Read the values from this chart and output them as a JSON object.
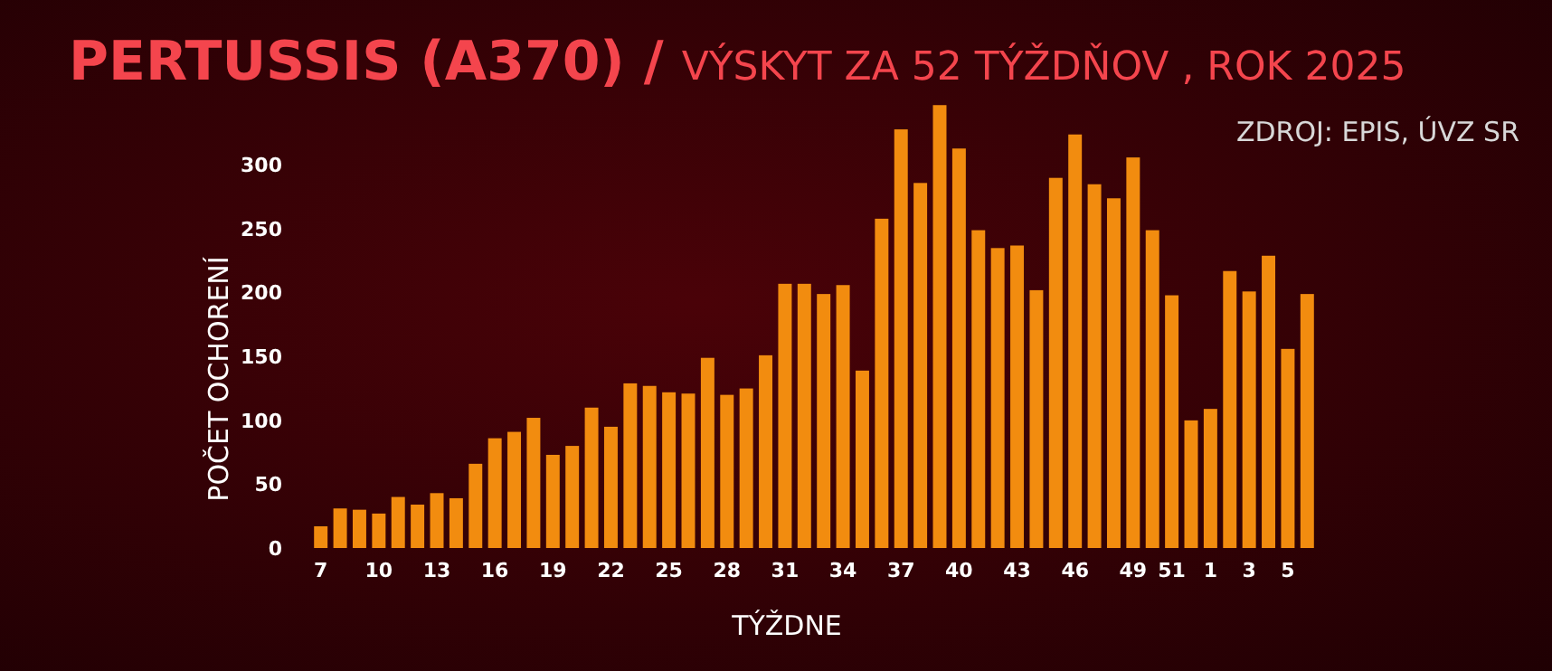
{
  "chart_data": {
    "type": "bar",
    "title": "PERTUSSIS (A370) /",
    "subtitle": "VÝSKYT ZA 52 TÝŽDŇOV , ROK 2025",
    "annotations": [
      "ZDROJ: EPIS, ÚVZ SR"
    ],
    "xlabel": "TÝŽDNE",
    "ylabel": "POČET OCHORENÍ",
    "categories": [
      "7",
      null,
      null,
      "10",
      null,
      null,
      "13",
      null,
      null,
      "16",
      null,
      null,
      "19",
      null,
      null,
      "22",
      null,
      null,
      "25",
      null,
      null,
      "28",
      null,
      null,
      "31",
      null,
      null,
      "34",
      null,
      null,
      "37",
      null,
      null,
      "40",
      null,
      null,
      "43",
      null,
      null,
      "46",
      null,
      null,
      "49",
      null,
      "51",
      null,
      "1",
      null,
      "3",
      null,
      "5",
      null
    ],
    "values": [
      17,
      31,
      30,
      27,
      40,
      34,
      43,
      39,
      66,
      86,
      91,
      102,
      73,
      80,
      110,
      95,
      129,
      127,
      122,
      121,
      149,
      120,
      125,
      151,
      207,
      207,
      199,
      206,
      139,
      258,
      328,
      286,
      347,
      313,
      249,
      235,
      237,
      202,
      290,
      324,
      285,
      274,
      306,
      249,
      198,
      100,
      109,
      217,
      201,
      229,
      156,
      199
    ],
    "color": "#f28c0f",
    "ylim": [
      0,
      350
    ],
    "yticks": [
      0,
      50,
      100,
      150,
      200,
      250,
      300
    ],
    "grid": false
  }
}
